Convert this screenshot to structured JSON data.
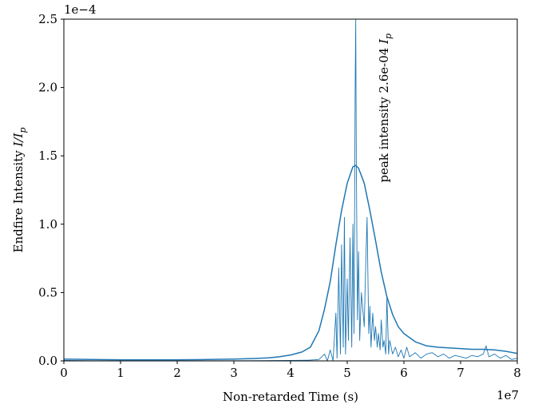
{
  "chart_data": {
    "type": "line",
    "title": "",
    "xlabel": "Non-retarded Time (s)",
    "ylabel": "Endfire Intensity I/I_p",
    "ylabel_parts": {
      "main": "Endfire Intensity ",
      "var": "I/I",
      "sub": "p"
    },
    "x_offset_label": "1e7",
    "y_offset_label": "1e−4",
    "xlim": [
      0,
      8
    ],
    "ylim": [
      0,
      2.5
    ],
    "x_unit_multiplier": 10000000,
    "y_unit_multiplier": 0.0001,
    "x_ticks": [
      0,
      1,
      2,
      3,
      4,
      5,
      6,
      7,
      8
    ],
    "x_tick_labels": [
      "0",
      "1",
      "2",
      "3",
      "4",
      "5",
      "6",
      "7",
      "8"
    ],
    "y_ticks": [
      0,
      0.5,
      1.0,
      1.5,
      2.0,
      2.5
    ],
    "y_tick_labels": [
      "0.0",
      "0.5",
      "1.0",
      "1.5",
      "2.0",
      "2.5"
    ],
    "grid": false,
    "legend": "none",
    "color": "#1f77b4",
    "annotation": {
      "text": "peak intensity 2.6e-04 ",
      "var": "I",
      "sub": "p",
      "rotation": "vertical",
      "x": 5.65,
      "y": 1.3
    },
    "series": [
      {
        "x": [
          0,
          0.5,
          1.0,
          1.5,
          2.0,
          2.5,
          3.0,
          3.3,
          3.6,
          3.8,
          4.0,
          4.2,
          4.35,
          4.5,
          4.6,
          4.7,
          4.8,
          4.9,
          5.0,
          5.1,
          5.15,
          5.2,
          5.3,
          5.4,
          5.5,
          5.6,
          5.7,
          5.8,
          5.9,
          6.0,
          6.2,
          6.4,
          6.6,
          6.8,
          7.0,
          7.2,
          7.4,
          7.6,
          7.8,
          8.0
        ],
        "y": [
          0.013,
          0.01,
          0.008,
          0.008,
          0.008,
          0.01,
          0.013,
          0.017,
          0.022,
          0.03,
          0.043,
          0.065,
          0.1,
          0.22,
          0.38,
          0.58,
          0.85,
          1.1,
          1.3,
          1.42,
          1.43,
          1.41,
          1.3,
          1.1,
          0.88,
          0.65,
          0.47,
          0.34,
          0.25,
          0.2,
          0.14,
          0.11,
          0.1,
          0.095,
          0.09,
          0.085,
          0.085,
          0.08,
          0.07,
          0.055
        ]
      },
      {
        "x": [
          0,
          0.5,
          1.0,
          1.5,
          2.0,
          2.5,
          3.0,
          3.5,
          4.0,
          4.3,
          4.5,
          4.6,
          4.65,
          4.7,
          4.75,
          4.8,
          4.82,
          4.85,
          4.88,
          4.9,
          4.93,
          4.95,
          4.97,
          5.0,
          5.02,
          5.05,
          5.08,
          5.1,
          5.12,
          5.14,
          5.15,
          5.16,
          5.18,
          5.2,
          5.22,
          5.25,
          5.28,
          5.3,
          5.32,
          5.35,
          5.38,
          5.4,
          5.42,
          5.45,
          5.48,
          5.5,
          5.53,
          5.55,
          5.58,
          5.6,
          5.63,
          5.65,
          5.68,
          5.7,
          5.73,
          5.75,
          5.8,
          5.85,
          5.9,
          5.95,
          6.0,
          6.05,
          6.1,
          6.2,
          6.3,
          6.4,
          6.5,
          6.6,
          6.7,
          6.8,
          6.9,
          7.0,
          7.1,
          7.2,
          7.3,
          7.4,
          7.45,
          7.5,
          7.6,
          7.7,
          7.8,
          7.9,
          8.0
        ],
        "y": [
          0.003,
          0.001,
          0.001,
          0.001,
          0.001,
          0.001,
          0.001,
          0.002,
          0.003,
          0.005,
          0.01,
          0.05,
          0.0,
          0.08,
          0.0,
          0.35,
          0.02,
          0.68,
          0.05,
          0.85,
          0.1,
          1.05,
          0.05,
          0.6,
          0.15,
          0.9,
          0.1,
          1.0,
          0.2,
          2.0,
          2.5,
          1.5,
          0.3,
          0.8,
          0.15,
          0.5,
          0.35,
          0.25,
          0.6,
          1.05,
          0.2,
          0.4,
          0.1,
          0.35,
          0.15,
          0.25,
          0.1,
          0.2,
          0.08,
          0.3,
          0.1,
          0.15,
          0.05,
          0.47,
          0.05,
          0.15,
          0.05,
          0.1,
          0.03,
          0.08,
          0.02,
          0.1,
          0.03,
          0.06,
          0.02,
          0.05,
          0.06,
          0.03,
          0.05,
          0.02,
          0.04,
          0.03,
          0.02,
          0.04,
          0.03,
          0.05,
          0.11,
          0.03,
          0.05,
          0.02,
          0.04,
          0.01,
          0.02
        ]
      }
    ]
  }
}
